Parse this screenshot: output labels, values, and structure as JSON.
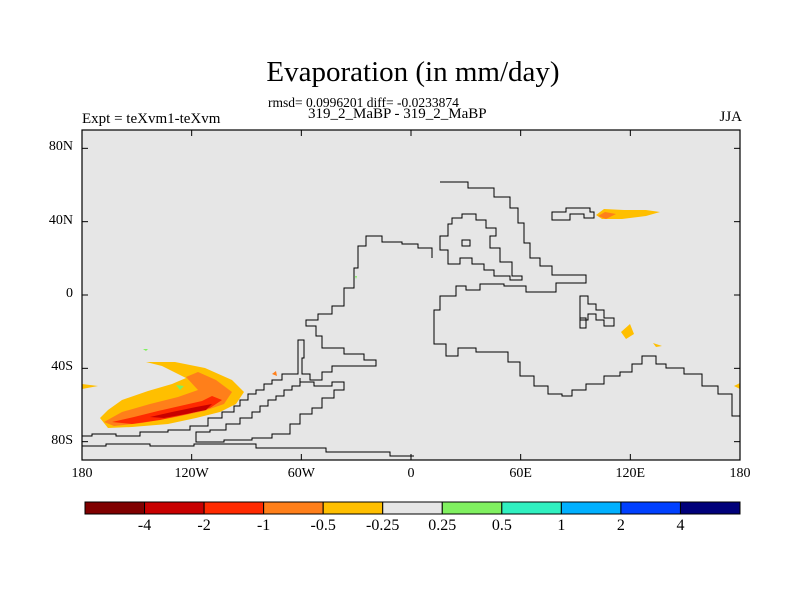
{
  "title": "Evaporation (in mm/day)",
  "stats": "rmsd= 0.0996201 diff= -0.0233874",
  "expt_label": "Expt = teXvm1-teXvm",
  "case_label": "319_2_MaBP - 319_2_MaBP",
  "season": "JJA",
  "map": {
    "lon_range": [
      -180,
      180
    ],
    "lat_range": [
      -90,
      90
    ],
    "background_color": "#e6e6e6",
    "y_ticks": [
      {
        "lat": 80,
        "label": "80N"
      },
      {
        "lat": 40,
        "label": "40N"
      },
      {
        "lat": 0,
        "label": "0"
      },
      {
        "lat": -40,
        "label": "40S"
      },
      {
        "lat": -80,
        "label": "80S"
      }
    ],
    "x_ticks": [
      {
        "lon": -180,
        "label": "180"
      },
      {
        "lon": -120,
        "label": "120W"
      },
      {
        "lon": -60,
        "label": "60W"
      },
      {
        "lon": 0,
        "label": "0"
      },
      {
        "lon": 60,
        "label": "60E"
      },
      {
        "lon": 120,
        "label": "120E"
      },
      {
        "lon": 180,
        "label": "180"
      }
    ]
  },
  "colorbar": {
    "colors": [
      "#800000",
      "#c80000",
      "#ff2a00",
      "#ff7f1a",
      "#ffbf00",
      "#e6e6e6",
      "#80f060",
      "#30f0c0",
      "#00b0ff",
      "#0040ff",
      "#00007a"
    ],
    "labels": [
      "-4",
      "-2",
      "-1",
      "-0.5",
      "-0.25",
      "0.25",
      "0.5",
      "1",
      "2",
      "4"
    ]
  }
}
